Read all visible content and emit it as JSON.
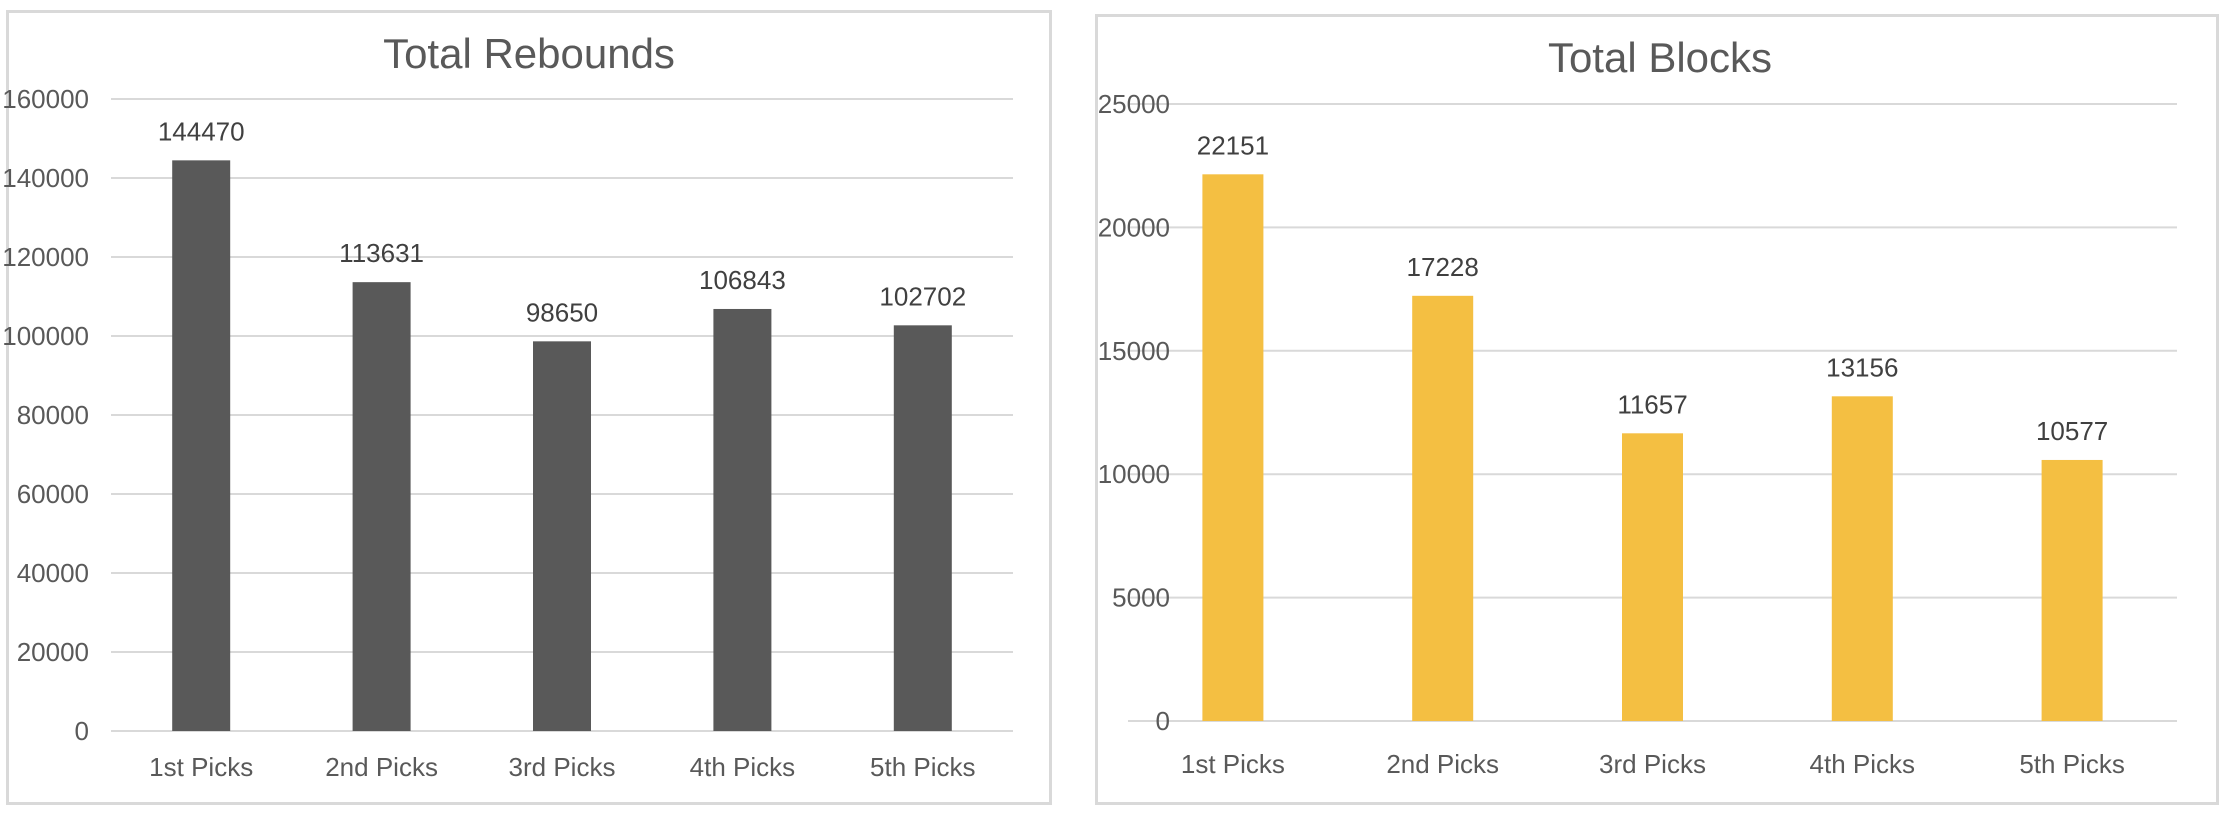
{
  "chart_data": [
    {
      "type": "bar",
      "title": "Total Rebounds",
      "categories": [
        "1st Picks",
        "2nd Picks",
        "3rd Picks",
        "4th Picks",
        "5th Picks"
      ],
      "values": [
        144470,
        113631,
        98650,
        106843,
        102702
      ],
      "ylim": [
        0,
        160000
      ],
      "yticks": [
        0,
        20000,
        40000,
        60000,
        80000,
        100000,
        120000,
        140000,
        160000
      ],
      "xlabel": "",
      "ylabel": "",
      "grid": true,
      "legend": "none",
      "data_labels": true,
      "color": "#595959"
    },
    {
      "type": "bar",
      "title": "Total Blocks",
      "categories": [
        "1st Picks",
        "2nd Picks",
        "3rd Picks",
        "4th Picks",
        "5th Picks"
      ],
      "values": [
        22151,
        17228,
        11657,
        13156,
        10577
      ],
      "ylim": [
        0,
        25000
      ],
      "yticks": [
        0,
        5000,
        10000,
        15000,
        20000,
        25000
      ],
      "xlabel": "",
      "ylabel": "",
      "grid": true,
      "legend": "none",
      "data_labels": true,
      "color": "#f4bf42"
    }
  ]
}
